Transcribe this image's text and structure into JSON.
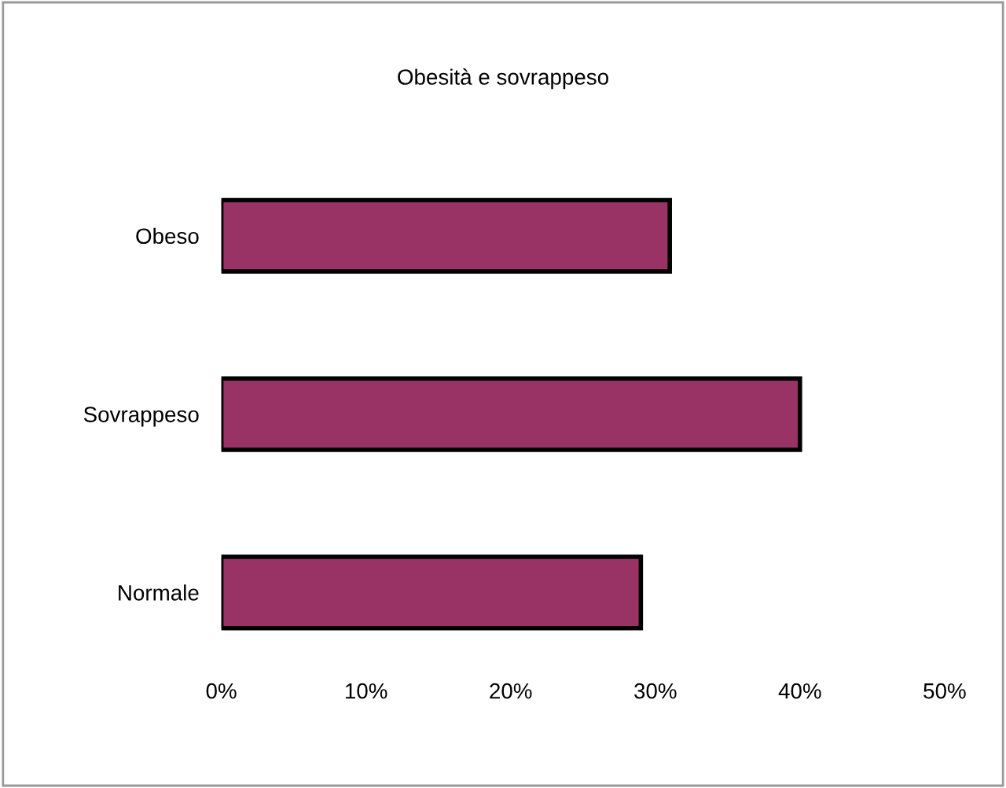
{
  "chart_data": {
    "type": "bar",
    "orientation": "horizontal",
    "title": "Obesità e sovrappeso",
    "categories": [
      "Obeso",
      "Sovrappeso",
      "Normale"
    ],
    "values": [
      31,
      40,
      29
    ],
    "color": "#993366",
    "xlim": [
      0,
      50
    ],
    "xticks": [
      {
        "value": 0,
        "label": "0%"
      },
      {
        "value": 10,
        "label": "10%"
      },
      {
        "value": 20,
        "label": "20%"
      },
      {
        "value": 30,
        "label": "30%"
      },
      {
        "value": 40,
        "label": "40%"
      },
      {
        "value": 50,
        "label": "50%"
      }
    ],
    "grid": false,
    "legend": false
  }
}
